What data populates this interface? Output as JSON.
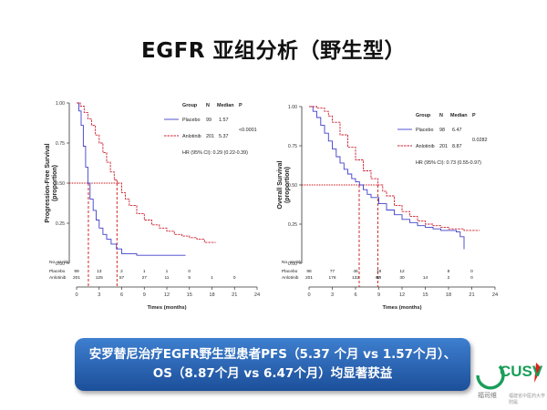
{
  "slide": {
    "title": "EGFR 亚组分析（野生型）",
    "conclusion": "安罗替尼治疗EGFR野生型患者PFS（5.37  个月 vs 1.57个月）、OS（8.87个月 vs 6.47个月）均显著获益",
    "logo": {
      "text": "CUSV",
      "sub": "福司维",
      "sub2": "福建省中医药大学附属"
    }
  },
  "colors": {
    "placebo": "#4040cc",
    "anlotinib": "#cc2233",
    "reference": "#cc1111",
    "conclusion_bg": "#2a62b4"
  },
  "chart_data": [
    {
      "type": "line",
      "step": true,
      "ylabel": "Progression-Free Survival (proportion)",
      "xlabel": "Times (months)",
      "xlim": [
        0,
        24
      ],
      "ylim": [
        0,
        1
      ],
      "xticks": [
        "0",
        "3",
        "6",
        "9",
        "12",
        "15",
        "18",
        "21",
        "24"
      ],
      "yticks": [
        "0.00",
        "0.25",
        "0.50",
        "0.75",
        "1.00"
      ],
      "legend": {
        "headers": [
          "Group",
          "N",
          "Median",
          "P"
        ],
        "rows": [
          {
            "group": "Placebo",
            "n": "99",
            "median": "1.57"
          },
          {
            "group": "Anlotinib",
            "n": "201",
            "median": "5.37"
          }
        ],
        "p": "<0.0001",
        "hr": "HR (95% CI): 0.29 (0.22-0.39)"
      },
      "reference": {
        "y": 0.5,
        "x_values": [
          1.57,
          5.37
        ]
      },
      "series": [
        {
          "name": "Placebo",
          "x": [
            0,
            0.3,
            0.6,
            0.9,
            1.2,
            1.5,
            1.8,
            2.2,
            2.6,
            3.0,
            3.5,
            4.0,
            4.6,
            5.3,
            6.0,
            8.0,
            12.0,
            14.5
          ],
          "y": [
            1.0,
            0.95,
            0.86,
            0.73,
            0.6,
            0.5,
            0.4,
            0.33,
            0.27,
            0.22,
            0.18,
            0.15,
            0.12,
            0.09,
            0.06,
            0.05,
            0.05,
            0.05
          ]
        },
        {
          "name": "Anlotinib",
          "x": [
            0,
            0.5,
            1.0,
            1.5,
            2.0,
            2.5,
            3.0,
            3.5,
            4.0,
            4.5,
            5.0,
            5.4,
            6.0,
            6.5,
            7.0,
            8.0,
            9.0,
            10.0,
            11.0,
            12.0,
            13.0,
            14.0,
            15.0,
            16.0,
            17.0,
            18.5
          ],
          "y": [
            1.0,
            0.98,
            0.94,
            0.9,
            0.86,
            0.8,
            0.75,
            0.69,
            0.63,
            0.57,
            0.52,
            0.5,
            0.44,
            0.4,
            0.36,
            0.31,
            0.27,
            0.24,
            0.22,
            0.2,
            0.18,
            0.17,
            0.16,
            0.15,
            0.13,
            0.13
          ]
        }
      ],
      "at_risk": {
        "label": "No. at risk",
        "rows": [
          {
            "name": "Placebo",
            "values": [
              "99",
              "13",
              "2",
              "1",
              "1",
              "0"
            ],
            "x": [
              0,
              3,
              6,
              9,
              12,
              15
            ]
          },
          {
            "name": "Anlotinib",
            "values": [
              "201",
              "125",
              "57",
              "27",
              "11",
              "5",
              "1",
              "0"
            ],
            "x": [
              0,
              3,
              6,
              9,
              12,
              15,
              18,
              21
            ]
          }
        ]
      }
    },
    {
      "type": "line",
      "step": true,
      "ylabel": "Overall Survival (proportion)",
      "xlabel": "Times (months)",
      "xlim": [
        0,
        24
      ],
      "ylim": [
        0,
        1
      ],
      "xticks": [
        "0",
        "3",
        "6",
        "9",
        "12",
        "15",
        "18",
        "21",
        "24"
      ],
      "yticks": [
        "0.00",
        "0.25",
        "0.50",
        "0.75",
        "1.00"
      ],
      "legend": {
        "headers": [
          "Group",
          "N",
          "Median",
          "P"
        ],
        "rows": [
          {
            "group": "Placebo",
            "n": "98",
            "median": "6.47"
          },
          {
            "group": "Anlotinib",
            "n": "201",
            "median": "8.87"
          }
        ],
        "p": "0.0282",
        "hr": "HR (95% CI): 0.73 (0.55-0.97)"
      },
      "reference": {
        "y": 0.5,
        "x_values": [
          6.47,
          8.87
        ]
      },
      "series": [
        {
          "name": "Placebo",
          "x": [
            0,
            0.5,
            1.0,
            1.5,
            2.0,
            2.5,
            3.0,
            3.5,
            4.0,
            4.5,
            5.0,
            5.5,
            6.0,
            6.5,
            7.0,
            7.5,
            8.0,
            9.0,
            10.0,
            11.0,
            12.0,
            13.0,
            14.0,
            15.0,
            16.0,
            17.0,
            18.0,
            19.0,
            19.5,
            20.0
          ],
          "y": [
            1.0,
            0.97,
            0.93,
            0.88,
            0.83,
            0.78,
            0.73,
            0.68,
            0.64,
            0.6,
            0.57,
            0.54,
            0.52,
            0.5,
            0.47,
            0.44,
            0.42,
            0.38,
            0.34,
            0.31,
            0.28,
            0.26,
            0.24,
            0.23,
            0.22,
            0.21,
            0.21,
            0.2,
            0.17,
            0.09
          ]
        },
        {
          "name": "Anlotinib",
          "x": [
            0,
            1.0,
            2.0,
            2.5,
            3.0,
            4.0,
            5.0,
            6.0,
            7.0,
            8.0,
            8.9,
            9.5,
            10.0,
            11.0,
            12.0,
            13.0,
            14.0,
            15.0,
            16.0,
            17.0,
            18.0,
            19.0,
            20.0,
            21.0,
            22.0
          ],
          "y": [
            1.0,
            0.99,
            0.97,
            0.94,
            0.9,
            0.82,
            0.74,
            0.66,
            0.59,
            0.54,
            0.5,
            0.46,
            0.43,
            0.37,
            0.33,
            0.3,
            0.27,
            0.25,
            0.24,
            0.23,
            0.22,
            0.22,
            0.21,
            0.21,
            0.21
          ]
        }
      ],
      "at_risk": {
        "label": "No. at risk",
        "rows": [
          {
            "name": "Placebo",
            "values": [
              "98",
              "77",
              "46",
              "18",
              "12",
              "8",
              "0"
            ],
            "x": [
              0,
              3,
              6,
              9,
              12,
              18,
              21
            ]
          },
          {
            "name": "Anlotinib",
            "values": [
              "201",
              "176",
              "132",
              "67",
              "54",
              "30",
              "14",
              "2",
              "0"
            ],
            "x": [
              0,
              3,
              6,
              8.9,
              9,
              12,
              15,
              18,
              21
            ]
          }
        ]
      }
    }
  ]
}
